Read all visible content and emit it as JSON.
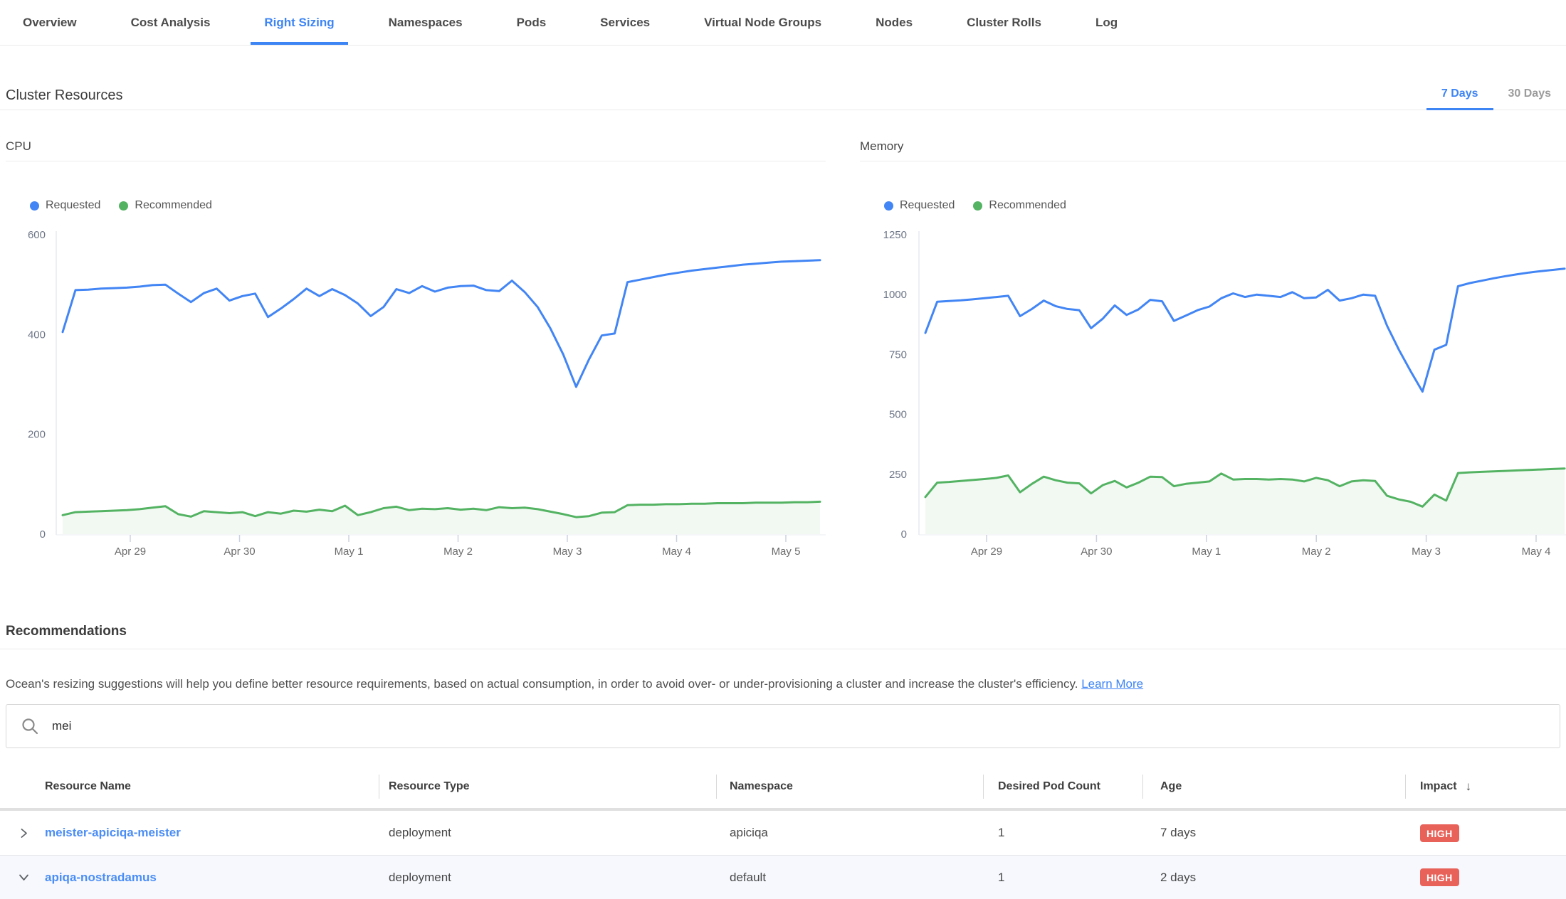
{
  "tabs": [
    {
      "label": "Overview",
      "active": false
    },
    {
      "label": "Cost Analysis",
      "active": false
    },
    {
      "label": "Right Sizing",
      "active": true
    },
    {
      "label": "Namespaces",
      "active": false
    },
    {
      "label": "Pods",
      "active": false
    },
    {
      "label": "Services",
      "active": false
    },
    {
      "label": "Virtual Node Groups",
      "active": false
    },
    {
      "label": "Nodes",
      "active": false
    },
    {
      "label": "Cluster Rolls",
      "active": false
    },
    {
      "label": "Log",
      "active": false
    }
  ],
  "cluster_resources": {
    "title": "Cluster Resources",
    "ranges": [
      {
        "label": "7 Days",
        "active": true
      },
      {
        "label": "30 Days",
        "active": false
      }
    ]
  },
  "chart_data": [
    {
      "type": "line",
      "title": "CPU",
      "legend": [
        "Requested",
        "Recommended"
      ],
      "legend_position": "top-left",
      "grid": false,
      "ylim": [
        0,
        600
      ],
      "y_ticks": [
        600,
        400,
        200,
        0
      ],
      "x_tick_labels": [
        "Apr 29",
        "Apr 30",
        "May 1",
        "May 2",
        "May 3",
        "May 4",
        "May 5"
      ],
      "series": [
        {
          "name": "Requested",
          "color": "#4285f4",
          "values": [
            405,
            489,
            490,
            492,
            493,
            494,
            496,
            499,
            500,
            482,
            465,
            483,
            492,
            468,
            477,
            482,
            435,
            452,
            471,
            492,
            477,
            491,
            479,
            462,
            437,
            455,
            491,
            483,
            497,
            486,
            494,
            497,
            498,
            489,
            487,
            508,
            485,
            455,
            412,
            360,
            295,
            350,
            398,
            402,
            505,
            510,
            515,
            520,
            524,
            528,
            531,
            534,
            537,
            540,
            542,
            544,
            546,
            547,
            548,
            549
          ]
        },
        {
          "name": "Recommended",
          "color": "#54b363",
          "area": true,
          "fill": "rgba(84,179,99,0.08)",
          "values": [
            38,
            44,
            45,
            46,
            47,
            48,
            50,
            53,
            56,
            40,
            35,
            46,
            44,
            42,
            44,
            36,
            44,
            41,
            47,
            45,
            49,
            46,
            57,
            38,
            44,
            52,
            55,
            48,
            51,
            50,
            52,
            49,
            51,
            48,
            54,
            52,
            53,
            50,
            45,
            40,
            34,
            36,
            43,
            44,
            58,
            59,
            59,
            60,
            60,
            61,
            61,
            62,
            62,
            62,
            63,
            63,
            63,
            64,
            64,
            65
          ]
        }
      ]
    },
    {
      "type": "line",
      "title": "Memory",
      "legend": [
        "Requested",
        "Recommended"
      ],
      "legend_position": "top-left",
      "grid": false,
      "ylim": [
        0,
        1250
      ],
      "y_ticks": [
        1250,
        1000,
        750,
        500,
        250,
        0
      ],
      "x_tick_labels": [
        "Apr 29",
        "Apr 30",
        "May 1",
        "May 2",
        "May 3",
        "May 4"
      ],
      "series": [
        {
          "name": "Requested",
          "color": "#4285f4",
          "values": [
            840,
            970,
            973,
            976,
            980,
            985,
            990,
            995,
            910,
            940,
            975,
            952,
            940,
            935,
            860,
            900,
            955,
            915,
            938,
            978,
            972,
            890,
            912,
            935,
            950,
            985,
            1005,
            990,
            1000,
            995,
            990,
            1010,
            985,
            988,
            1020,
            975,
            985,
            1000,
            995,
            870,
            770,
            680,
            595,
            770,
            790,
            1035,
            1048,
            1058,
            1068,
            1077,
            1085,
            1092,
            1098,
            1103,
            1108
          ]
        },
        {
          "name": "Recommended",
          "color": "#54b363",
          "area": true,
          "fill": "rgba(84,179,99,0.08)",
          "values": [
            155,
            215,
            218,
            222,
            226,
            230,
            235,
            245,
            175,
            210,
            240,
            225,
            215,
            212,
            170,
            205,
            222,
            195,
            215,
            240,
            238,
            200,
            210,
            215,
            220,
            253,
            228,
            230,
            230,
            228,
            230,
            228,
            220,
            235,
            225,
            200,
            220,
            225,
            222,
            160,
            145,
            135,
            115,
            165,
            140,
            255,
            258,
            260,
            262,
            264,
            266,
            268,
            270,
            272,
            274
          ]
        }
      ]
    }
  ],
  "recommendations": {
    "title": "Recommendations",
    "description": "Ocean's resizing suggestions will help you define better resource requirements, based on actual consumption, in order to avoid over- or under-provisioning a cluster and increase the cluster's efficiency.",
    "learn_more_label": "Learn More"
  },
  "search": {
    "value": "mei"
  },
  "table": {
    "columns": [
      "Resource Name",
      "Resource Type",
      "Namespace",
      "Desired Pod Count",
      "Age",
      "Impact"
    ],
    "sort_column": "Impact",
    "sort_direction": "desc",
    "sort_indicator": "↓",
    "impact_color": "#e8625a",
    "rows": [
      {
        "expand_state": "collapsed",
        "resource_name": "meister-apiciqa-meister",
        "resource_type": "deployment",
        "namespace": "apiciqa",
        "desired_pod_count": "1",
        "age": "7 days",
        "impact": "HIGH"
      },
      {
        "expand_state": "expanded",
        "resource_name": "apiqa-nostradamus",
        "resource_type": "deployment",
        "namespace": "default",
        "desired_pod_count": "1",
        "age": "2 days",
        "impact": "HIGH"
      }
    ]
  },
  "colors": {
    "accent": "#3d84f5",
    "link": "#4a8df5",
    "requested": "#4285f4",
    "recommended": "#54b363",
    "high_badge": "#e8625a"
  }
}
